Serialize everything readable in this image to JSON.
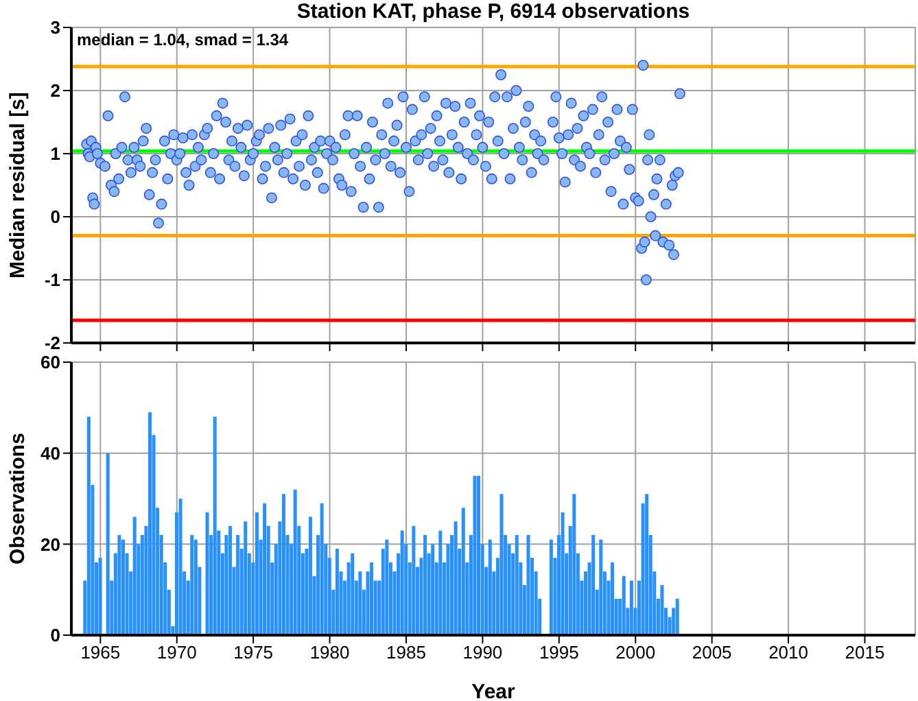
{
  "chart_data": [
    {
      "type": "scatter",
      "title": "Station KAT, phase P, 6914 observations",
      "ylabel": "Median residual [s]",
      "annotations": [
        "median = 1.04, smad = 1.34"
      ],
      "xlim": [
        1963.1,
        2018.3
      ],
      "xticks": [
        1965,
        1970,
        1975,
        1980,
        1985,
        1990,
        1995,
        2000,
        2005,
        2010,
        2015
      ],
      "ylim": [
        -2,
        3
      ],
      "yticks": [
        -2,
        -1,
        0,
        1,
        2,
        3
      ],
      "tick_labels": "y",
      "grid": true,
      "marker": "circle",
      "color": "#88b8f4",
      "ref_lines": [
        {
          "axis": "y",
          "value": 2.38,
          "color": "#ffa500"
        },
        {
          "axis": "y",
          "value": 1.04,
          "color": "#00ff00"
        },
        {
          "axis": "y",
          "value": -0.3,
          "color": "#ffa500"
        },
        {
          "axis": "y",
          "value": -1.64,
          "color": "#ff0000"
        }
      ],
      "x": [
        1964.1,
        1964.2,
        1964.3,
        1964.4,
        1964.5,
        1964.6,
        1964.7,
        1964.8,
        1965.0,
        1965.3,
        1965.5,
        1965.7,
        1965.9,
        1966.0,
        1966.2,
        1966.4,
        1966.6,
        1966.8,
        1967.0,
        1967.2,
        1967.4,
        1967.6,
        1967.8,
        1968.0,
        1968.2,
        1968.4,
        1968.6,
        1968.8,
        1969.0,
        1969.2,
        1969.4,
        1969.6,
        1969.8,
        1970.0,
        1970.2,
        1970.4,
        1970.6,
        1970.8,
        1971.0,
        1971.2,
        1971.4,
        1971.6,
        1971.8,
        1972.0,
        1972.2,
        1972.4,
        1972.6,
        1972.8,
        1973.0,
        1973.2,
        1973.4,
        1973.6,
        1973.8,
        1974.0,
        1974.2,
        1974.4,
        1974.6,
        1974.8,
        1975.0,
        1975.2,
        1975.4,
        1975.6,
        1975.8,
        1976.0,
        1976.2,
        1976.4,
        1976.6,
        1976.8,
        1977.0,
        1977.2,
        1977.4,
        1977.6,
        1977.8,
        1978.0,
        1978.2,
        1978.4,
        1978.6,
        1978.8,
        1979.0,
        1979.2,
        1979.4,
        1979.6,
        1979.8,
        1980.0,
        1980.2,
        1980.4,
        1980.6,
        1980.8,
        1981.0,
        1981.2,
        1981.4,
        1981.6,
        1981.8,
        1982.0,
        1982.2,
        1982.4,
        1982.6,
        1982.8,
        1983.0,
        1983.2,
        1983.4,
        1983.6,
        1983.8,
        1984.0,
        1984.2,
        1984.4,
        1984.6,
        1984.8,
        1985.0,
        1985.2,
        1985.4,
        1985.6,
        1985.8,
        1986.0,
        1986.2,
        1986.4,
        1986.6,
        1986.8,
        1987.0,
        1987.2,
        1987.4,
        1987.6,
        1987.8,
        1988.0,
        1988.2,
        1988.4,
        1988.6,
        1988.8,
        1989.0,
        1989.2,
        1989.4,
        1989.6,
        1989.8,
        1990.0,
        1990.2,
        1990.4,
        1990.6,
        1990.8,
        1991.0,
        1991.2,
        1991.4,
        1991.6,
        1991.8,
        1992.0,
        1992.2,
        1992.4,
        1992.6,
        1992.8,
        1993.0,
        1993.2,
        1993.4,
        1993.6,
        1993.8,
        1994.0,
        1994.6,
        1994.8,
        1995.0,
        1995.2,
        1995.4,
        1995.6,
        1995.8,
        1996.0,
        1996.2,
        1996.4,
        1996.6,
        1996.8,
        1997.0,
        1997.2,
        1997.4,
        1997.6,
        1997.8,
        1998.0,
        1998.2,
        1998.4,
        1998.6,
        1998.8,
        1999.0,
        1999.2,
        1999.4,
        1999.6,
        1999.8,
        2000.0,
        2000.2,
        2000.4,
        2000.5,
        2000.6,
        2000.7,
        2000.8,
        2000.9,
        2001.0,
        2001.2,
        2001.3,
        2001.4,
        2001.6,
        2001.8,
        2002.0,
        2002.2,
        2002.4,
        2002.5,
        2002.6,
        2002.8,
        2002.9
      ],
      "values": [
        1.15,
        1.0,
        0.95,
        1.2,
        0.3,
        0.2,
        1.1,
        1.0,
        0.85,
        0.8,
        1.6,
        0.5,
        0.4,
        1.0,
        0.6,
        1.1,
        1.9,
        0.9,
        0.7,
        1.1,
        0.9,
        0.8,
        1.2,
        1.4,
        0.35,
        0.7,
        0.9,
        -0.1,
        0.2,
        1.2,
        0.6,
        1.0,
        1.3,
        0.9,
        1.0,
        1.25,
        0.7,
        0.5,
        1.3,
        0.8,
        1.1,
        0.9,
        1.3,
        1.4,
        0.7,
        1.0,
        1.6,
        0.6,
        1.8,
        1.5,
        0.9,
        1.2,
        0.8,
        1.4,
        1.1,
        0.65,
        1.45,
        0.9,
        1.0,
        1.2,
        1.3,
        0.6,
        0.8,
        1.4,
        0.3,
        1.1,
        0.9,
        1.45,
        0.7,
        1.0,
        1.55,
        0.6,
        1.2,
        0.8,
        1.3,
        0.5,
        1.6,
        0.9,
        1.1,
        0.7,
        1.2,
        0.45,
        1.0,
        1.2,
        0.9,
        1.1,
        0.6,
        0.5,
        1.3,
        1.6,
        0.4,
        1.0,
        1.6,
        0.8,
        0.15,
        1.1,
        0.6,
        1.5,
        0.9,
        0.15,
        1.3,
        1.0,
        1.8,
        0.8,
        1.2,
        1.45,
        0.7,
        1.9,
        1.1,
        0.4,
        1.7,
        1.2,
        0.9,
        1.3,
        1.9,
        1.0,
        1.4,
        0.8,
        1.6,
        1.2,
        0.9,
        1.8,
        0.7,
        1.3,
        1.75,
        1.1,
        0.6,
        1.5,
        1.0,
        1.8,
        0.9,
        1.3,
        1.6,
        1.1,
        0.8,
        1.5,
        0.6,
        1.9,
        1.2,
        2.25,
        1.0,
        1.9,
        0.6,
        1.4,
        2.0,
        1.1,
        0.9,
        1.5,
        1.75,
        0.7,
        1.3,
        1.0,
        1.2,
        0.9,
        1.5,
        1.9,
        1.25,
        1.0,
        0.55,
        1.3,
        1.8,
        0.9,
        1.4,
        0.8,
        1.6,
        1.1,
        1.0,
        1.7,
        0.7,
        1.3,
        1.9,
        0.9,
        1.5,
        0.4,
        1.0,
        1.7,
        1.2,
        0.2,
        1.1,
        0.75,
        1.7,
        0.3,
        0.25,
        -0.5,
        2.4,
        -0.4,
        -1.0,
        0.9,
        1.3,
        0.0,
        0.35,
        -0.3,
        0.6,
        0.9,
        -0.4,
        0.2,
        -0.45,
        0.5,
        -0.6,
        0.65,
        0.7,
        1.95
      ]
    },
    {
      "type": "bar",
      "xlabel": "Year",
      "ylabel": "Observations",
      "xlim": [
        1963.1,
        2018.3
      ],
      "xticks": [
        1965,
        1970,
        1975,
        1980,
        1985,
        1990,
        1995,
        2000,
        2005,
        2010,
        2015
      ],
      "ylim": [
        0,
        60
      ],
      "yticks": [
        0,
        20,
        40,
        60
      ],
      "grid": true,
      "color": "#2990ff",
      "x": [
        1964.0,
        1964.25,
        1964.5,
        1964.75,
        1965.0,
        1965.25,
        1965.5,
        1965.75,
        1966.0,
        1966.25,
        1966.5,
        1966.75,
        1967.0,
        1967.25,
        1967.5,
        1967.75,
        1968.0,
        1968.25,
        1968.5,
        1968.75,
        1969.0,
        1969.25,
        1969.5,
        1969.75,
        1970.0,
        1970.25,
        1970.5,
        1970.75,
        1971.0,
        1971.25,
        1971.5,
        1971.75,
        1972.0,
        1972.25,
        1972.5,
        1972.75,
        1973.0,
        1973.25,
        1973.5,
        1973.75,
        1974.0,
        1974.25,
        1974.5,
        1974.75,
        1975.0,
        1975.25,
        1975.5,
        1975.75,
        1976.0,
        1976.25,
        1976.5,
        1976.75,
        1977.0,
        1977.25,
        1977.5,
        1977.75,
        1978.0,
        1978.25,
        1978.5,
        1978.75,
        1979.0,
        1979.25,
        1979.5,
        1979.75,
        1980.0,
        1980.25,
        1980.5,
        1980.75,
        1981.0,
        1981.25,
        1981.5,
        1981.75,
        1982.0,
        1982.25,
        1982.5,
        1982.75,
        1983.0,
        1983.25,
        1983.5,
        1983.75,
        1984.0,
        1984.25,
        1984.5,
        1984.75,
        1985.0,
        1985.25,
        1985.5,
        1985.75,
        1986.0,
        1986.25,
        1986.5,
        1986.75,
        1987.0,
        1987.25,
        1987.5,
        1987.75,
        1988.0,
        1988.25,
        1988.5,
        1988.75,
        1989.0,
        1989.25,
        1989.5,
        1989.75,
        1990.0,
        1990.25,
        1990.5,
        1990.75,
        1991.0,
        1991.25,
        1991.5,
        1991.75,
        1992.0,
        1992.25,
        1992.5,
        1992.75,
        1993.0,
        1993.25,
        1993.5,
        1993.75,
        1994.0,
        1994.25,
        1994.5,
        1994.75,
        1995.0,
        1995.25,
        1995.5,
        1995.75,
        1996.0,
        1996.25,
        1996.5,
        1996.75,
        1997.0,
        1997.25,
        1997.5,
        1997.75,
        1998.0,
        1998.25,
        1998.5,
        1998.75,
        1999.0,
        1999.25,
        1999.5,
        1999.75,
        2000.0,
        2000.25,
        2000.5,
        2000.75,
        2001.0,
        2001.25,
        2001.5,
        2001.75,
        2002.0,
        2002.25,
        2002.5,
        2002.75
      ],
      "values": [
        12,
        48,
        33,
        16,
        17,
        0,
        40,
        12,
        18,
        22,
        21,
        18,
        14,
        26,
        20,
        22,
        24,
        49,
        44,
        28,
        22,
        16,
        10,
        2,
        27,
        30,
        14,
        12,
        22,
        21,
        15,
        0,
        27,
        22,
        48,
        23,
        18,
        22,
        24,
        15,
        22,
        19,
        25,
        18,
        16,
        27,
        21,
        29,
        24,
        16,
        20,
        25,
        31,
        22,
        20,
        32,
        24,
        18,
        19,
        26,
        13,
        22,
        29,
        20,
        17,
        10,
        19,
        14,
        12,
        16,
        18,
        12,
        14,
        10,
        14,
        16,
        12,
        12,
        19,
        21,
        16,
        14,
        18,
        23,
        20,
        16,
        24,
        15,
        17,
        22,
        18,
        20,
        16,
        23,
        16,
        20,
        22,
        25,
        19,
        28,
        16,
        22,
        35,
        35,
        20,
        15,
        21,
        14,
        17,
        31,
        22,
        20,
        18,
        22,
        16,
        11,
        22,
        17,
        14,
        8,
        0,
        0,
        21,
        17,
        22,
        27,
        18,
        24,
        31,
        18,
        12,
        14,
        16,
        22,
        10,
        21,
        14,
        12,
        16,
        8,
        8,
        13,
        6,
        12,
        6,
        12,
        29,
        31,
        22,
        14,
        8,
        11,
        6,
        4,
        6,
        8
      ]
    }
  ]
}
